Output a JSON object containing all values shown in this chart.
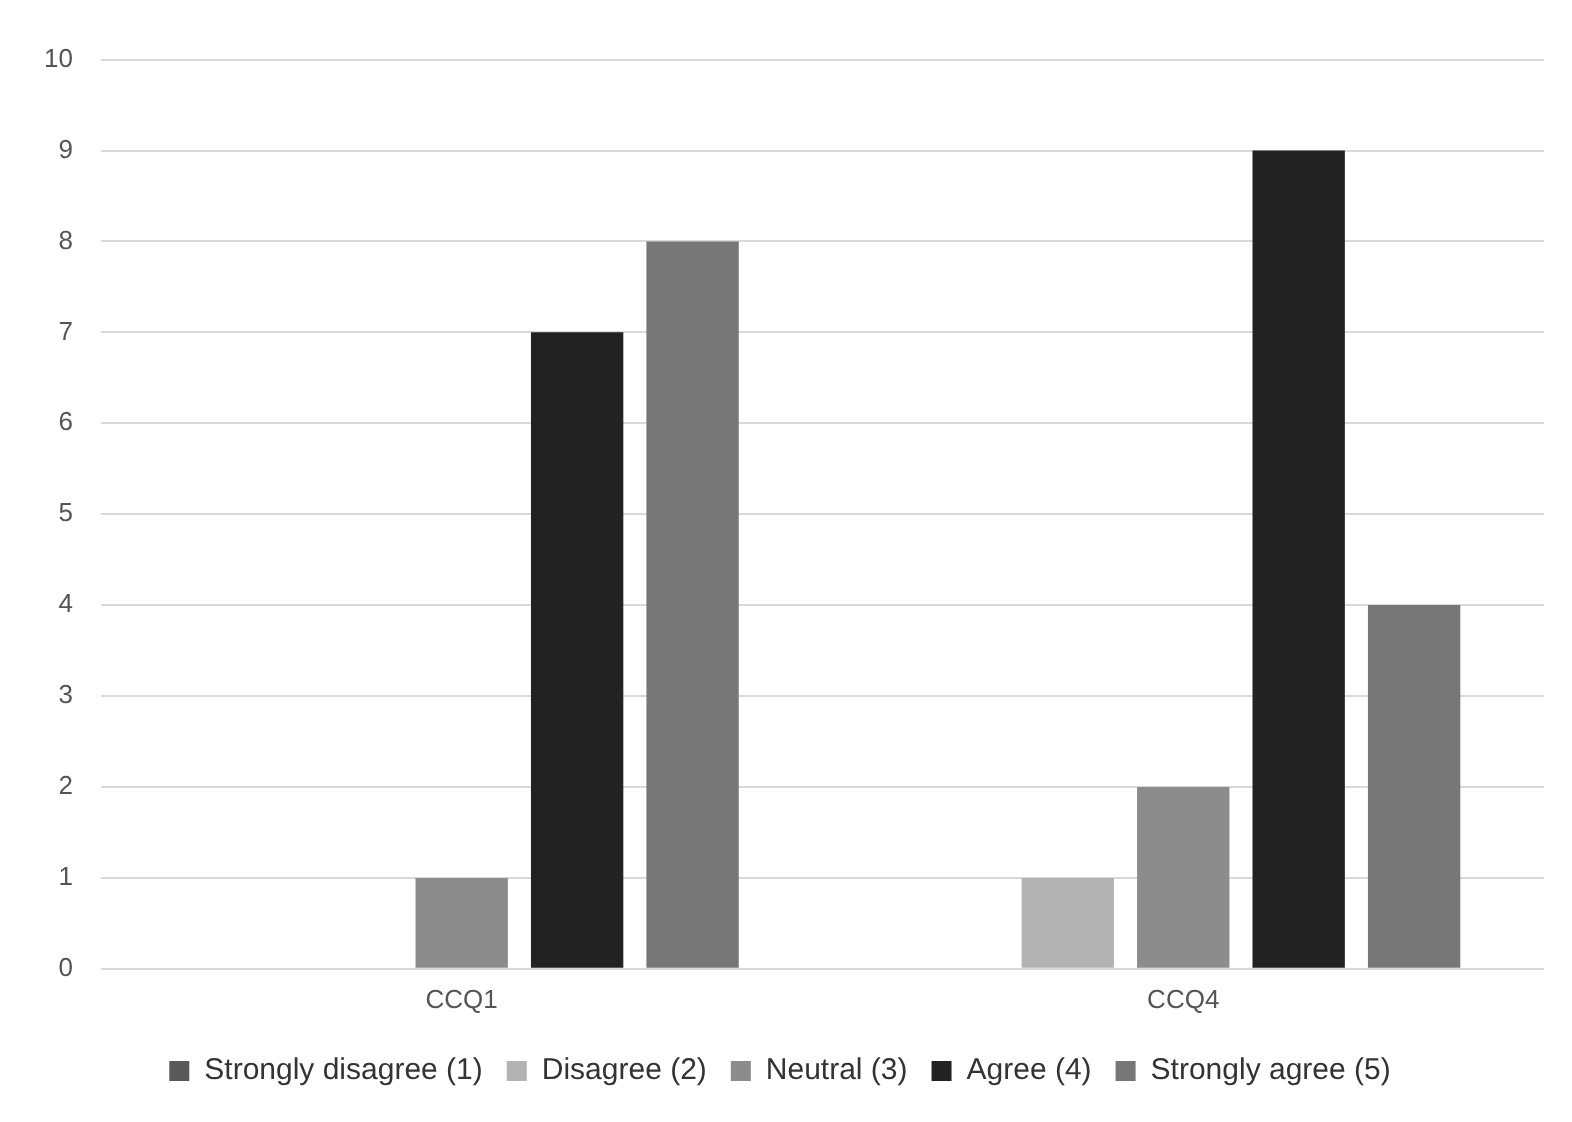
{
  "chart_data": {
    "type": "bar",
    "categories": [
      "CCQ1",
      "CCQ4"
    ],
    "series": [
      {
        "name": "Strongly disagree (1)",
        "color": "#595959",
        "values": [
          0,
          0
        ]
      },
      {
        "name": "Disagree (2)",
        "color": "#b3b3b3",
        "values": [
          0,
          1
        ]
      },
      {
        "name": "Neutral (3)",
        "color": "#8c8c8c",
        "values": [
          1,
          2
        ]
      },
      {
        "name": "Agree (4)",
        "color": "#222222",
        "values": [
          7,
          9
        ]
      },
      {
        "name": "Strongly agree (5)",
        "color": "#777777",
        "values": [
          8,
          4
        ]
      }
    ],
    "ylim": [
      0,
      10
    ],
    "yticks": [
      0,
      1,
      2,
      3,
      4,
      5,
      6,
      7,
      8,
      9,
      10
    ],
    "grid": "y",
    "legend": "bottom"
  }
}
